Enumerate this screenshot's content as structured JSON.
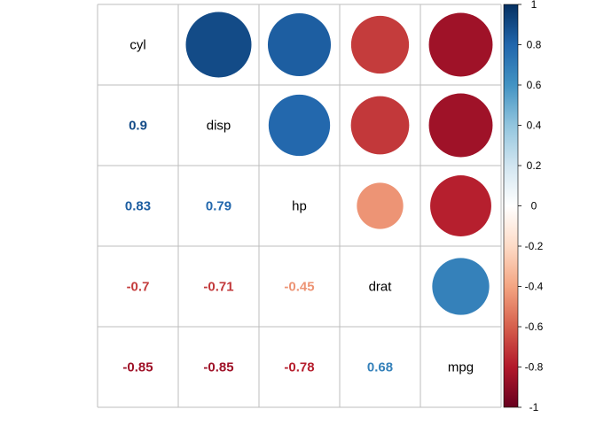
{
  "chart_data": {
    "type": "heatmap",
    "variables": [
      "cyl",
      "disp",
      "hp",
      "drat",
      "mpg"
    ],
    "matrix": [
      [
        1,
        0.9,
        0.83,
        -0.7,
        -0.85
      ],
      [
        0.9,
        1,
        0.79,
        -0.71,
        -0.85
      ],
      [
        0.83,
        0.79,
        1,
        -0.45,
        -0.78
      ],
      [
        -0.7,
        -0.71,
        -0.45,
        1,
        0.68
      ],
      [
        -0.85,
        -0.85,
        -0.78,
        0.68,
        1
      ]
    ],
    "upper_method": "circle",
    "lower_method": "number",
    "diagonal": "variable-names",
    "colorbar": {
      "range": [
        -1,
        1
      ],
      "ticks": [
        -1,
        -0.8,
        -0.6,
        -0.4,
        -0.2,
        0,
        0.2,
        0.4,
        0.6,
        0.8,
        1
      ],
      "tick_labels": [
        "-1",
        "-0.8",
        "-0.6",
        "-0.4",
        "-0.2",
        "0",
        "0.2",
        "0.4",
        "0.6",
        "0.8",
        "1"
      ],
      "colors": [
        "#67001F",
        "#B2182B",
        "#D6604D",
        "#F4A582",
        "#FDDBC7",
        "#FFFFFF",
        "#D1E5F0",
        "#92C5DE",
        "#4393C3",
        "#2166AC",
        "#053061"
      ],
      "placement": "right"
    },
    "grid": true,
    "grid_color": "#BEBEBE"
  }
}
